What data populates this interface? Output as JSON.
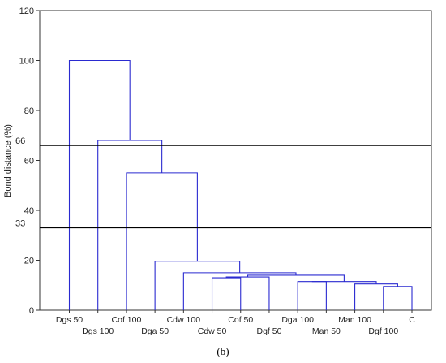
{
  "panel_label": "(b)",
  "chart_data": {
    "type": "dendrogram",
    "title": "",
    "xlabel": "",
    "ylabel": "Bond distance (%)",
    "ylim": [
      0,
      120
    ],
    "yticks": [
      0,
      20,
      40,
      60,
      80,
      100,
      120
    ],
    "grid": false,
    "legend": "none",
    "colors": {
      "links": "#2a2ad0",
      "cut_lines": "#000000",
      "axes": "#333333"
    },
    "leaves": [
      "Dgs 50",
      "Dgs 100",
      "Cof 100",
      "Dga 50",
      "Cdw 100",
      "Cdw 50",
      "Cof 50",
      "Dgf 50",
      "Dga 100",
      "Man 50",
      "Man 100",
      "Dgf 100",
      "C"
    ],
    "merges": [
      {
        "left": "L:11",
        "right": "L:12",
        "height": 9.5
      },
      {
        "left": "L:10",
        "right": "N:0",
        "height": 10.5
      },
      {
        "left": "L:8",
        "right": "L:9",
        "height": 11.5
      },
      {
        "left": "N:2",
        "right": "N:1",
        "height": 11.5
      },
      {
        "left": "L:5",
        "right": "L:6",
        "height": 13
      },
      {
        "left": "N:4",
        "right": "L:7",
        "height": 13.3
      },
      {
        "left": "N:5",
        "right": "N:3",
        "height": 14
      },
      {
        "left": "L:4",
        "right": "N:6",
        "height": 15
      },
      {
        "left": "L:3",
        "right": "N:7",
        "height": 19.6
      },
      {
        "left": "L:2",
        "right": "N:8",
        "height": 55
      },
      {
        "left": "L:1",
        "right": "N:9",
        "height": 68
      },
      {
        "left": "L:0",
        "right": "N:10",
        "height": 100
      }
    ],
    "cut_lines": [
      {
        "label": "66",
        "y": 66
      },
      {
        "label": "33",
        "y": 33
      }
    ]
  }
}
